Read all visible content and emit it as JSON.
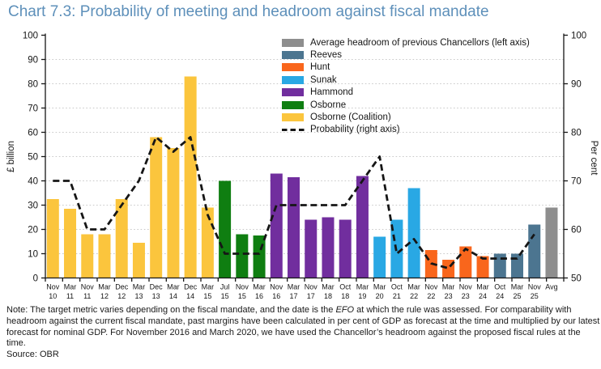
{
  "title": "Chart 7.3: Probability of meeting and headroom against fiscal mandate",
  "chart_data": {
    "type": "bar",
    "title": "Chart 7.3: Probability of meeting and headroom against fiscal mandate",
    "left_axis": {
      "label": "£ billion",
      "min": 0,
      "max": 100,
      "step": 10
    },
    "right_axis": {
      "label": "Per cent",
      "min": 50,
      "max": 100,
      "step": 10
    },
    "grid": "dotted horizontal at every 10 (left axis)",
    "legend_position": "top-right inside plot",
    "categories": [
      {
        "m": "Nov",
        "y": "10"
      },
      {
        "m": "Mar",
        "y": "11"
      },
      {
        "m": "Nov",
        "y": "11"
      },
      {
        "m": "Mar",
        "y": "12"
      },
      {
        "m": "Dec",
        "y": "12"
      },
      {
        "m": "Mar",
        "y": "13"
      },
      {
        "m": "Dec",
        "y": "13"
      },
      {
        "m": "Mar",
        "y": "14"
      },
      {
        "m": "Dec",
        "y": "14"
      },
      {
        "m": "Mar",
        "y": "15"
      },
      {
        "m": "Jul",
        "y": "15"
      },
      {
        "m": "Nov",
        "y": "15"
      },
      {
        "m": "Mar",
        "y": "16"
      },
      {
        "m": "Nov",
        "y": "16"
      },
      {
        "m": "Mar",
        "y": "17"
      },
      {
        "m": "Nov",
        "y": "17"
      },
      {
        "m": "Mar",
        "y": "18"
      },
      {
        "m": "Oct",
        "y": "18"
      },
      {
        "m": "Mar",
        "y": "19"
      },
      {
        "m": "Mar",
        "y": "20"
      },
      {
        "m": "Oct",
        "y": "21"
      },
      {
        "m": "Mar",
        "y": "22"
      },
      {
        "m": "Nov",
        "y": "22"
      },
      {
        "m": "Mar",
        "y": "23"
      },
      {
        "m": "Nov",
        "y": "23"
      },
      {
        "m": "Mar",
        "y": "24"
      },
      {
        "m": "Oct",
        "y": "24"
      },
      {
        "m": "Mar",
        "y": "25"
      },
      {
        "m": "Nov",
        "y": "25"
      },
      {
        "m": "Avg",
        "y": ""
      }
    ],
    "series": [
      {
        "name": "Headroom (left axis, £ billion)",
        "type": "bar",
        "axis": "left",
        "values": [
          32.5,
          28.5,
          18,
          18,
          32.5,
          14.5,
          58,
          53.5,
          83,
          29,
          40,
          18,
          17.5,
          43,
          41.5,
          24,
          25,
          24,
          42,
          17,
          24,
          37,
          11.5,
          7.5,
          13,
          9,
          10,
          10,
          22,
          29
        ],
        "chancellor": [
          "coalition",
          "coalition",
          "coalition",
          "coalition",
          "coalition",
          "coalition",
          "coalition",
          "coalition",
          "coalition",
          "coalition",
          "osborne",
          "osborne",
          "osborne",
          "hammond",
          "hammond",
          "hammond",
          "hammond",
          "hammond",
          "hammond",
          "sunak",
          "sunak",
          "sunak",
          "hunt",
          "hunt",
          "hunt",
          "hunt",
          "reeves",
          "reeves",
          "reeves",
          "avg"
        ]
      },
      {
        "name": "Probability (right axis)",
        "type": "dashed-line",
        "axis": "right",
        "values": [
          70,
          70,
          60,
          60,
          65,
          70,
          79,
          76,
          79,
          63,
          55,
          55,
          55,
          65,
          65,
          65,
          65,
          65,
          70,
          75,
          55,
          58,
          53,
          52,
          56,
          54,
          54,
          54,
          59,
          null
        ]
      }
    ],
    "colors": {
      "coalition": "#FBC53D",
      "osborne": "#0F7E11",
      "hammond": "#712E9E",
      "sunak": "#29A8E4",
      "hunt": "#F9661C",
      "reeves": "#4C7590",
      "avg": "#8E8E8E",
      "probability": "#161616",
      "grid": "#C9C9C9",
      "axis": "#161616",
      "title": "#5E90BA"
    }
  },
  "legend": {
    "items": [
      {
        "label": "Average headroom of previous Chancellors (left axis)",
        "color": "#8E8E8E",
        "style": "bar"
      },
      {
        "label": "Reeves",
        "color": "#4C7590",
        "style": "bar"
      },
      {
        "label": "Hunt",
        "color": "#F9661C",
        "style": "bar"
      },
      {
        "label": "Sunak",
        "color": "#29A8E4",
        "style": "bar"
      },
      {
        "label": "Hammond",
        "color": "#712E9E",
        "style": "bar"
      },
      {
        "label": "Osborne",
        "color": "#0F7E11",
        "style": "bar"
      },
      {
        "label": "Osborne (Coalition)",
        "color": "#FBC53D",
        "style": "bar"
      },
      {
        "label": "Probability (right axis)",
        "color": "#161616",
        "style": "dash"
      }
    ]
  },
  "note": {
    "part1": "Note: The target metric varies depending on the fiscal mandate, and the date is the ",
    "efo": "EFO",
    "part2": " at which the rule was assessed. For comparability with headroom against the current fiscal mandate, past margins have been calculated in per cent of GDP as forecast at the time and multiplied by our latest forecast for nominal GDP. For November 2016 and March 2020, we have used the Chancellor’s headroom against the proposed fiscal rules at the time."
  },
  "source": "Source: OBR"
}
